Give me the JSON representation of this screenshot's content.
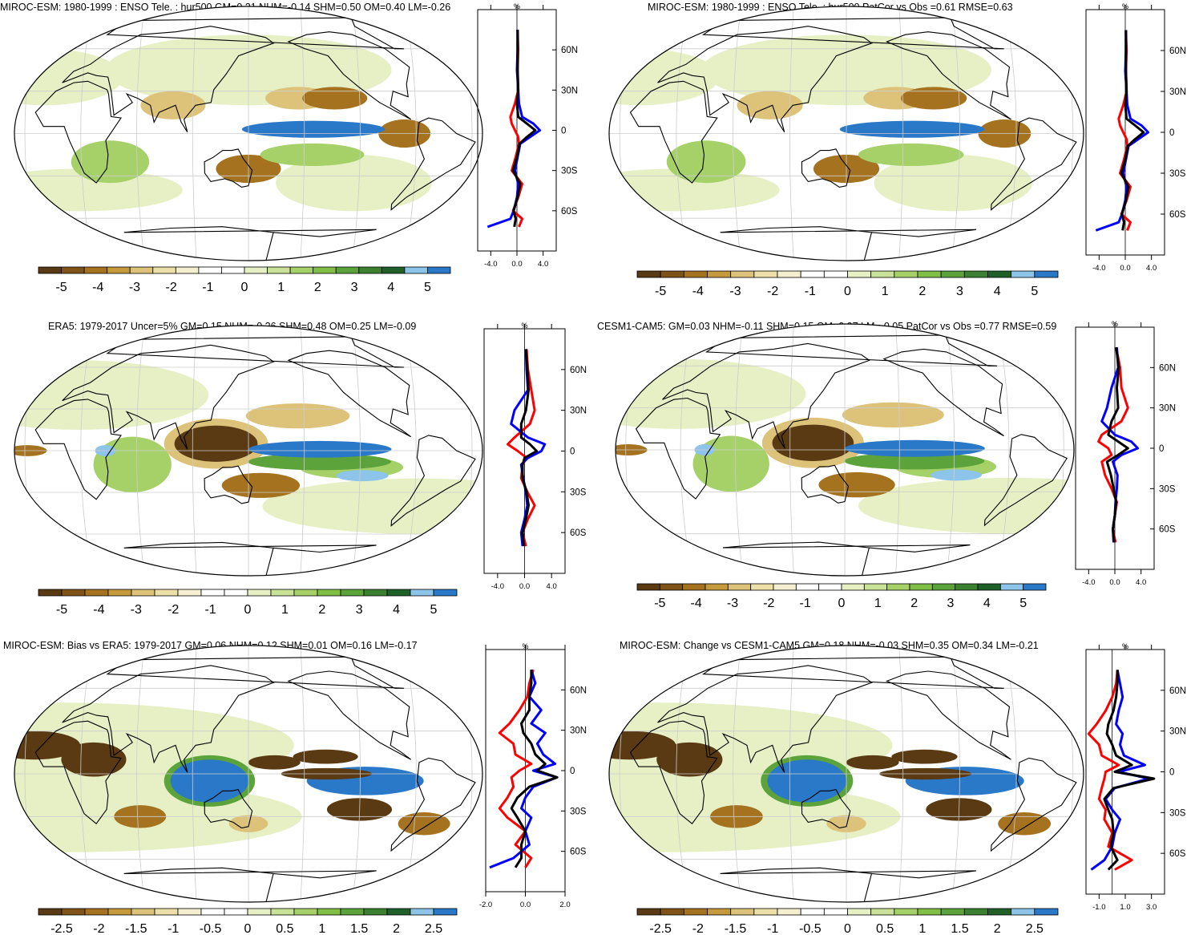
{
  "chart_data": [
    {
      "type": "heatmap",
      "title": "MIROC-ESM: 1980-1999 : ENSO Tele. : hur500 GM=0.21 NHM=-0.14 SHM=0.50 OM=0.40 LM=-0.26",
      "colorbar_labels": [
        "-5",
        "-4",
        "-3",
        "-2",
        "-1",
        "0",
        "1",
        "2",
        "3",
        "4",
        "5"
      ],
      "colorbar_range": [
        -5,
        5
      ],
      "zonal_mean": {
        "unit_label": "%",
        "lat_ticks": [
          "60N",
          "30N",
          "0",
          "30S",
          "60S"
        ],
        "x_ticks": [
          "-4.0",
          "0.0",
          "4.0"
        ],
        "xlim": [
          -6,
          6
        ],
        "series": [
          {
            "color": "#ff0000",
            "lat": [
              75,
              60,
              45,
              30,
              20,
              10,
              5,
              0,
              -5,
              -10,
              -20,
              -30,
              -40,
              -50,
              -60,
              -66,
              -72
            ],
            "values": [
              0.1,
              0.2,
              0.1,
              0.2,
              -0.3,
              -1.0,
              -0.8,
              -0.3,
              0.2,
              0.3,
              -0.2,
              -0.8,
              0.8,
              0.2,
              -0.6,
              0.8,
              0.3
            ]
          },
          {
            "color": "#0000ff",
            "lat": [
              75,
              60,
              45,
              30,
              20,
              10,
              5,
              0,
              -5,
              -10,
              -20,
              -30,
              -40,
              -50,
              -60,
              -66,
              -72
            ],
            "values": [
              0.1,
              0.1,
              0.0,
              0.2,
              0.3,
              0.8,
              2.5,
              3.5,
              2.0,
              0.5,
              0.1,
              -0.3,
              0.2,
              0.0,
              -0.5,
              -1.0,
              -4.5
            ]
          },
          {
            "color": "#000000",
            "lat": [
              75,
              60,
              45,
              30,
              20,
              10,
              5,
              0,
              -5,
              -10,
              -20,
              -30,
              -40,
              -50,
              -60,
              -66,
              -72
            ],
            "values": [
              0.1,
              0.1,
              0.1,
              0.2,
              0.0,
              0.2,
              1.5,
              2.8,
              1.5,
              0.4,
              0.0,
              -0.6,
              0.5,
              0.1,
              -0.5,
              -0.2,
              -0.4
            ]
          }
        ]
      }
    },
    {
      "type": "heatmap",
      "title": "MIROC-ESM: 1980-1999 : ENSO Tele. : hur500 PatCor vs Obs =0.61 RMSE=0.63",
      "colorbar_labels": [
        "-5",
        "-4",
        "-3",
        "-2",
        "-1",
        "0",
        "1",
        "2",
        "3",
        "4",
        "5"
      ],
      "colorbar_range": [
        -5,
        5
      ],
      "zonal_mean": {
        "unit_label": "%",
        "lat_ticks": [
          "60N",
          "30N",
          "0",
          "30S",
          "60S"
        ],
        "x_ticks": [
          "-4.0",
          "0.0",
          "4.0"
        ],
        "xlim": [
          -6,
          6
        ],
        "series": [
          {
            "color": "#ff0000",
            "lat": [
              75,
              60,
              45,
              30,
              20,
              10,
              5,
              0,
              -5,
              -10,
              -20,
              -30,
              -40,
              -50,
              -60,
              -66,
              -72
            ],
            "values": [
              0.1,
              0.2,
              0.1,
              0.2,
              -0.3,
              -1.0,
              -0.8,
              -0.3,
              0.2,
              0.3,
              -0.2,
              -0.8,
              0.8,
              0.2,
              -0.6,
              0.8,
              0.3
            ]
          },
          {
            "color": "#0000ff",
            "lat": [
              75,
              60,
              45,
              30,
              20,
              10,
              5,
              0,
              -5,
              -10,
              -20,
              -30,
              -40,
              -50,
              -60,
              -66,
              -72
            ],
            "values": [
              0.1,
              0.1,
              0.0,
              0.2,
              0.3,
              0.8,
              2.5,
              3.5,
              2.0,
              0.5,
              0.1,
              -0.3,
              0.2,
              0.0,
              -0.5,
              -1.0,
              -4.5
            ]
          },
          {
            "color": "#000000",
            "lat": [
              75,
              60,
              45,
              30,
              20,
              10,
              5,
              0,
              -5,
              -10,
              -20,
              -30,
              -40,
              -50,
              -60,
              -66,
              -72
            ],
            "values": [
              0.1,
              0.1,
              0.1,
              0.2,
              0.0,
              0.2,
              1.5,
              2.8,
              1.5,
              0.4,
              0.0,
              -0.6,
              0.5,
              0.1,
              -0.5,
              -0.2,
              -0.4
            ]
          }
        ]
      }
    },
    {
      "type": "heatmap",
      "title": "ERA5: 1979-2017 Uncer=5% GM=0.15 NHM=-0.26 SHM=0.48 OM=0.25 LM=-0.09",
      "colorbar_labels": [
        "-5",
        "-4",
        "-3",
        "-2",
        "-1",
        "0",
        "1",
        "2",
        "3",
        "4",
        "5"
      ],
      "colorbar_range": [
        -5,
        5
      ],
      "zonal_mean": {
        "unit_label": "%",
        "lat_ticks": [
          "60N",
          "30N",
          "0",
          "30S",
          "60S"
        ],
        "x_ticks": [
          "-4.0",
          "0.0",
          "4.0"
        ],
        "xlim": [
          -6,
          6
        ],
        "series": [
          {
            "color": "#ff0000",
            "lat": [
              75,
              60,
              45,
              30,
              20,
              10,
              5,
              0,
              -5,
              -10,
              -20,
              -30,
              -40,
              -50,
              -60,
              -70
            ],
            "values": [
              0.3,
              0.5,
              1.0,
              1.5,
              0.8,
              -1.5,
              -2.5,
              -1.0,
              0.3,
              -0.3,
              -0.5,
              0.4,
              1.5,
              0.5,
              -0.3,
              0.2
            ]
          },
          {
            "color": "#0000ff",
            "lat": [
              75,
              60,
              45,
              30,
              20,
              10,
              5,
              0,
              -5,
              -10,
              -20,
              -30,
              -40,
              -50,
              -60,
              -70
            ],
            "values": [
              0.2,
              0.3,
              0.5,
              -1.5,
              -2.0,
              0.5,
              3.0,
              2.5,
              0.5,
              -0.5,
              -0.2,
              0.2,
              0.4,
              0.0,
              -0.5,
              -0.3
            ]
          },
          {
            "color": "#000000",
            "lat": [
              75,
              60,
              45,
              30,
              20,
              10,
              5,
              0,
              -5,
              -10,
              -20,
              -30,
              -40,
              -50,
              -60,
              -70
            ],
            "values": [
              0.2,
              0.4,
              0.6,
              0.2,
              -0.5,
              -0.5,
              0.8,
              1.8,
              0.0,
              -0.3,
              -0.3,
              0.3,
              0.6,
              0.2,
              -0.3,
              -0.1
            ]
          }
        ]
      }
    },
    {
      "type": "heatmap",
      "title": "CESM1-CAM5: GM=0.03 NHM=-0.11 SHM=0.15 OM=0.07 LM=-0.05 PatCor vs Obs =0.77 RMSE=0.59",
      "colorbar_labels": [
        "-5",
        "-4",
        "-3",
        "-2",
        "-1",
        "0",
        "1",
        "2",
        "3",
        "4",
        "5"
      ],
      "colorbar_range": [
        -5,
        5
      ],
      "zonal_mean": {
        "unit_label": "%",
        "lat_ticks": [
          "60N",
          "30N",
          "0",
          "30S",
          "60S"
        ],
        "x_ticks": [
          "-4.0",
          "0.0",
          "4.0"
        ],
        "xlim": [
          -6,
          6
        ],
        "series": [
          {
            "color": "#ff0000",
            "lat": [
              75,
              60,
              45,
              30,
              20,
              10,
              5,
              0,
              -5,
              -10,
              -20,
              -30,
              -40,
              -50,
              -60,
              -70
            ],
            "values": [
              0.2,
              0.8,
              1.0,
              2.0,
              1.0,
              -2.0,
              -2.5,
              -1.0,
              -0.5,
              -2.0,
              -1.5,
              -0.5,
              0.3,
              0.0,
              -0.3,
              0.1
            ]
          },
          {
            "color": "#0000ff",
            "lat": [
              75,
              60,
              45,
              30,
              20,
              10,
              5,
              0,
              -5,
              -10,
              -20,
              -30,
              -40,
              -50,
              -60,
              -70
            ],
            "values": [
              0.3,
              0.5,
              -0.5,
              -1.2,
              -2.0,
              0.0,
              2.5,
              3.5,
              1.0,
              -0.3,
              0.4,
              0.3,
              0.1,
              0.0,
              -0.3,
              -0.2
            ]
          },
          {
            "color": "#000000",
            "lat": [
              75,
              60,
              45,
              30,
              20,
              10,
              5,
              0,
              -5,
              -10,
              -20,
              -30,
              -40,
              -50,
              -60,
              -70
            ],
            "values": [
              0.2,
              0.6,
              0.3,
              0.5,
              -0.5,
              -1.0,
              0.5,
              2.0,
              0.5,
              -1.2,
              -0.6,
              -0.2,
              0.2,
              0.0,
              -0.3,
              -0.1
            ]
          }
        ]
      }
    },
    {
      "type": "heatmap",
      "title": "MIROC-ESM: Bias vs ERA5: 1979-2017 GM=0.06 NHM=0.12 SHM=0.01 OM=0.16 LM=-0.17",
      "colorbar_labels": [
        "-2.5",
        "-2",
        "-1.5",
        "-1",
        "-0.5",
        "0",
        "0.5",
        "1",
        "1.5",
        "2",
        "2.5"
      ],
      "colorbar_range": [
        -2.5,
        2.5
      ],
      "zonal_mean": {
        "unit_label": "%",
        "lat_ticks": [
          "60N",
          "30N",
          "0",
          "30S",
          "60S"
        ],
        "x_ticks": [
          "-2.0",
          "0.0",
          "2.0"
        ],
        "xlim": [
          -2.0,
          2.0
        ],
        "series": [
          {
            "color": "#ff0000",
            "lat": [
              75,
              65,
              55,
              45,
              35,
              28,
              20,
              12,
              5,
              0,
              -5,
              -12,
              -20,
              -28,
              -35,
              -45,
              -55,
              -65,
              -72
            ],
            "values": [
              0.4,
              0.2,
              0.1,
              -0.3,
              -0.8,
              -1.3,
              -0.6,
              -0.5,
              0.3,
              -0.3,
              -0.7,
              -0.6,
              -0.9,
              -1.3,
              -0.9,
              0.0,
              -0.5,
              0.3,
              0.0
            ]
          },
          {
            "color": "#0000ff",
            "lat": [
              75,
              65,
              55,
              45,
              35,
              28,
              20,
              12,
              5,
              0,
              -5,
              -12,
              -20,
              -28,
              -35,
              -45,
              -55,
              -65,
              -72
            ],
            "values": [
              0.3,
              0.5,
              0.2,
              0.8,
              0.3,
              1.0,
              0.6,
              0.9,
              1.5,
              0.4,
              1.6,
              0.4,
              0.0,
              -0.2,
              0.3,
              0.0,
              0.2,
              -0.6,
              -1.8
            ]
          },
          {
            "color": "#000000",
            "lat": [
              75,
              65,
              55,
              45,
              35,
              28,
              20,
              12,
              5,
              0,
              -5,
              -12,
              -20,
              -28,
              -35,
              -45,
              -55,
              -65,
              -72
            ],
            "values": [
              0.3,
              0.3,
              0.2,
              0.2,
              -0.2,
              -0.1,
              0.3,
              0.5,
              1.0,
              0.6,
              1.6,
              0.2,
              -0.4,
              -0.7,
              -0.4,
              0.0,
              -0.2,
              -0.2,
              -0.5
            ]
          }
        ]
      }
    },
    {
      "type": "heatmap",
      "title": "MIROC-ESM: Change vs CESM1-CAM5 GM=0.18 NHM=-0.03 SHM=0.35 OM=0.34 LM=-0.21",
      "colorbar_labels": [
        "-2.5",
        "-2",
        "-1.5",
        "-1",
        "-0.5",
        "0",
        "0.5",
        "1",
        "1.5",
        "2",
        "2.5"
      ],
      "colorbar_range": [
        -2.5,
        2.5
      ],
      "zonal_mean": {
        "unit_label": "%",
        "lat_ticks": [
          "60N",
          "30N",
          "0",
          "30S",
          "60S"
        ],
        "x_ticks": [
          "-1.0",
          "1.0",
          "3.0"
        ],
        "xlim": [
          -2.0,
          4.0
        ],
        "series": [
          {
            "color": "#ff0000",
            "lat": [
              75,
              65,
              55,
              45,
              35,
              28,
              20,
              12,
              5,
              0,
              -5,
              -12,
              -20,
              -28,
              -35,
              -45,
              -55,
              -65,
              -72
            ],
            "values": [
              0.4,
              0.3,
              0.0,
              -0.5,
              -1.2,
              -1.8,
              -1.0,
              -0.8,
              0.5,
              -0.5,
              -0.6,
              -0.8,
              -1.0,
              -0.5,
              -0.6,
              0.0,
              -0.3,
              1.5,
              0.2
            ]
          },
          {
            "color": "#0000ff",
            "lat": [
              75,
              65,
              55,
              45,
              35,
              28,
              20,
              12,
              5,
              0,
              -5,
              -12,
              -20,
              -28,
              -35,
              -45,
              -55,
              -65,
              -72
            ],
            "values": [
              0.4,
              0.6,
              0.8,
              0.5,
              0.3,
              0.8,
              0.6,
              0.9,
              2.5,
              0.5,
              2.8,
              0.2,
              -0.5,
              0.0,
              0.6,
              0.2,
              0.0,
              -0.6,
              -1.6
            ]
          },
          {
            "color": "#000000",
            "lat": [
              75,
              65,
              55,
              45,
              35,
              28,
              20,
              12,
              5,
              0,
              -5,
              -12,
              -20,
              -28,
              -35,
              -45,
              -55,
              -65,
              -72
            ],
            "values": [
              0.4,
              0.4,
              0.3,
              0.1,
              -0.3,
              -0.4,
              0.0,
              0.3,
              1.5,
              0.2,
              3.2,
              0.1,
              -0.6,
              -0.3,
              0.0,
              0.1,
              -0.1,
              0.4,
              -0.3
            ]
          }
        ]
      }
    }
  ],
  "colors": {
    "scale": [
      "#5a3a12",
      "#7f5218",
      "#a5731f",
      "#c59a3d",
      "#ddc27a",
      "#ecdfa8",
      "#f5efd2",
      "#ffffff",
      "#ffffff",
      "#e6f0c4",
      "#c8e297",
      "#a5d168",
      "#80bf46",
      "#5ba33a",
      "#3c8032",
      "#1f6028",
      "#8cc4ea",
      "#2a78c8"
    ]
  }
}
